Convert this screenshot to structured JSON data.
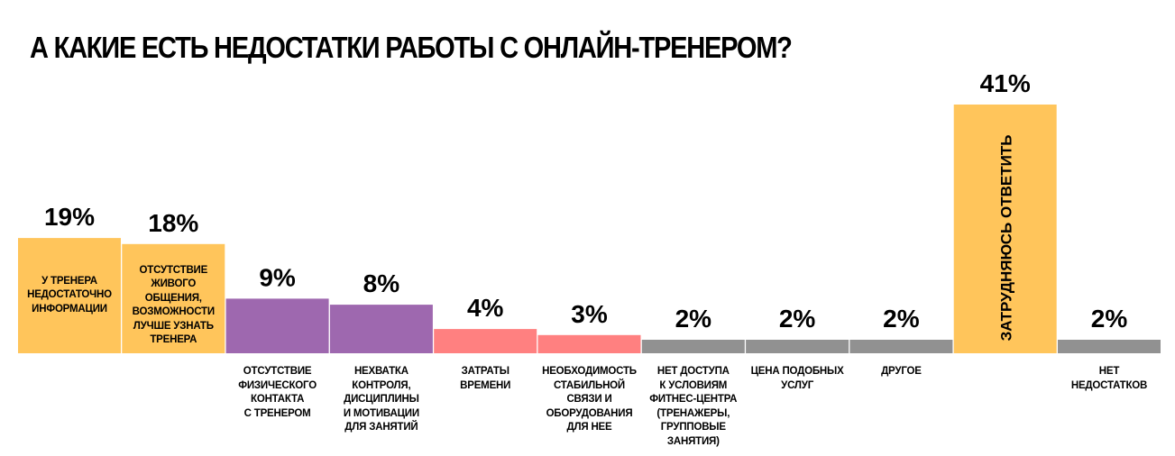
{
  "title": "А КАКИЕ ЕСТЬ НЕДОСТАТКИ РАБОТЫ С ОНЛАЙН-ТРЕНЕРОМ?",
  "colors": {
    "yellow": "#FFC55B",
    "purple": "#9E68AF",
    "pink": "#FF8080",
    "gray": "#919191"
  },
  "chart_data": {
    "type": "bar",
    "title": "А КАКИЕ ЕСТЬ НЕДОСТАТКИ РАБОТЫ С ОНЛАЙН-ТРЕНЕРОМ?",
    "unit": "%",
    "categories": [
      "У ТРЕНЕРА НЕДОСТАТОЧНО ИНФОРМАЦИИ",
      "ОТСУТСТВИЕ ЖИВОГО ОБЩЕНИЯ, ВОЗМОЖНОСТИ ЛУЧШЕ УЗНАТЬ ТРЕНЕРА",
      "ОТСУТСТВИЕ ФИЗИЧЕСКОГО КОНТАКТА С ТРЕНЕРОМ",
      "НЕХВАТКА КОНТРОЛЯ, ДИСЦИПЛИНЫ И МОТИВАЦИИ ДЛЯ ЗАНЯТИЙ",
      "ЗАТРАТЫ ВРЕМЕНИ",
      "НЕОБХОДИМОСТЬ СТАБИЛЬНОЙ СВЯЗИ И ОБОРУДОВАНИЯ ДЛЯ НЕЕ",
      "НЕТ ДОСТУПА К УСЛОВИЯМ ФИТНЕС-ЦЕНТРА (ТРЕНАЖЕРЫ, ГРУППОВЫЕ ЗАНЯТИЯ)",
      "ЦЕНА ПОДОБНЫХ УСЛУГ",
      "ДРУГОЕ",
      "ЗАТРУДНЯЮСЬ ОТВЕТИТЬ",
      "НЕТ НЕДОСТАТКОВ"
    ],
    "values": [
      19,
      18,
      9,
      8,
      4,
      3,
      2,
      2,
      2,
      41,
      2
    ],
    "value_labels": [
      "19%",
      "18%",
      "9%",
      "8%",
      "4%",
      "3%",
      "2%",
      "2%",
      "2%",
      "41%",
      "2%"
    ],
    "bar_colors": [
      "yellow",
      "yellow",
      "purple",
      "purple",
      "pink",
      "pink",
      "gray",
      "gray",
      "gray",
      "yellow",
      "gray"
    ],
    "label_inside_bar": [
      true,
      true,
      false,
      false,
      false,
      false,
      false,
      false,
      false,
      true,
      false
    ],
    "label_vertical": [
      false,
      false,
      false,
      false,
      false,
      false,
      false,
      false,
      false,
      true,
      false
    ],
    "label_lines": [
      [
        "У ТРЕНЕРА",
        "НЕДОСТАТОЧНО",
        "ИНФОРМАЦИИ"
      ],
      [
        "ОТСУТСТВИЕ",
        "ЖИВОГО ОБЩЕНИЯ,",
        "ВОЗМОЖНОСТИ",
        "ЛУЧШЕ УЗНАТЬ",
        "ТРЕНЕРА"
      ],
      [
        "ОТСУТСТВИЕ",
        "ФИЗИЧЕСКОГО",
        "КОНТАКТА",
        "С ТРЕНЕРОМ"
      ],
      [
        "НЕХВАТКА",
        "КОНТРОЛЯ,",
        "ДИСЦИПЛИНЫ",
        "И МОТИВАЦИИ",
        "ДЛЯ ЗАНЯТИЙ"
      ],
      [
        "ЗАТРАТЫ",
        "ВРЕМЕНИ"
      ],
      [
        "НЕОБХОДИМОСТЬ",
        "СТАБИЛЬНОЙ",
        "СВЯЗИ И",
        "ОБОРУДОВАНИЯ",
        "ДЛЯ НЕЕ"
      ],
      [
        "НЕТ ДОСТУПА",
        "К УСЛОВИЯМ",
        "ФИТНЕС-ЦЕНТРА",
        "(ТРЕНАЖЕРЫ,",
        "ГРУППОВЫЕ",
        "ЗАНЯТИЯ)"
      ],
      [
        "ЦЕНА ПОДОБНЫХ",
        "УСЛУГ"
      ],
      [
        "ДРУГОЕ"
      ],
      [
        "ЗАТРУДНЯЮСЬ ОТВЕТИТЬ"
      ],
      [
        "НЕТ",
        "НЕДОСТАТКОВ"
      ]
    ],
    "ylim": [
      0,
      41
    ],
    "grid": false,
    "legend": "none"
  }
}
